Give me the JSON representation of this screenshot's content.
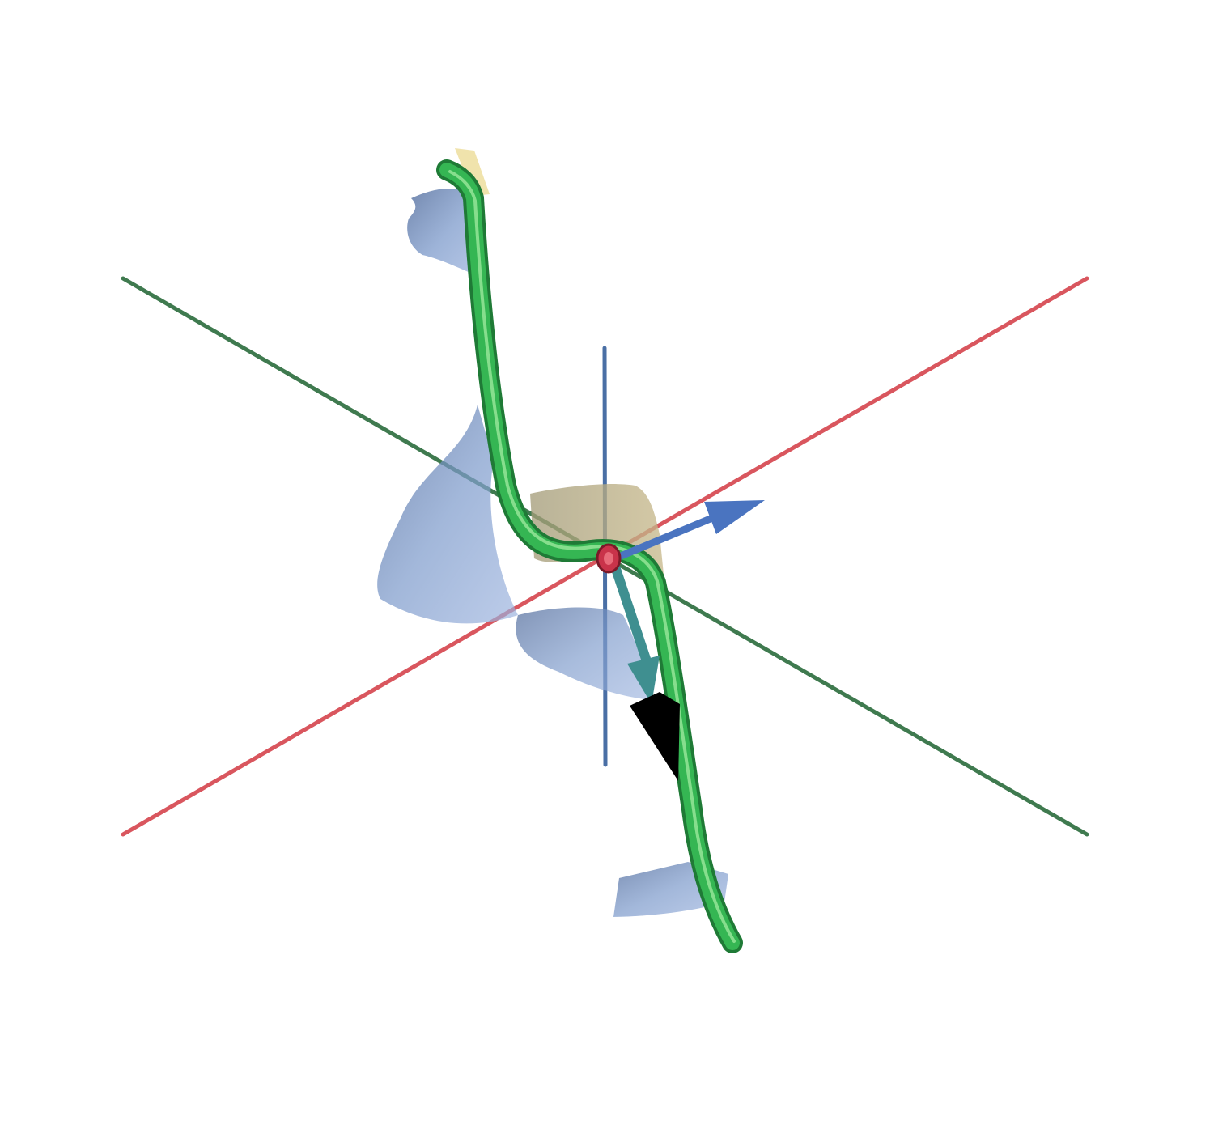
{
  "scene": {
    "background": "#ffffff",
    "colors": {
      "x_axis": "#d9565e",
      "y_axis": "#3f7a4f",
      "z_axis": "#4a6fa5",
      "blue_surface": "#6f8fbf",
      "tan_surface": "#b8ab7e",
      "cream_surface": "#efe2a8",
      "green_tube": "#2fa84e",
      "green_tube_highlight": "#8ee38f",
      "vector_blue": "#4a74c0",
      "vector_teal": "#3f8f90",
      "red_marker": "#c9334a",
      "black_shadow": "#000000"
    },
    "elements": {
      "axes": [
        "x-axis",
        "y-axis",
        "z-axis"
      ],
      "surfaces": [
        "blue-shaded-surface",
        "tan-surface",
        "cream-surface"
      ],
      "curve": "green-tube-curve",
      "vectors": [
        "blue-arrow-vector",
        "teal-arrow-vector"
      ],
      "marker": "red-ring-marker"
    }
  }
}
